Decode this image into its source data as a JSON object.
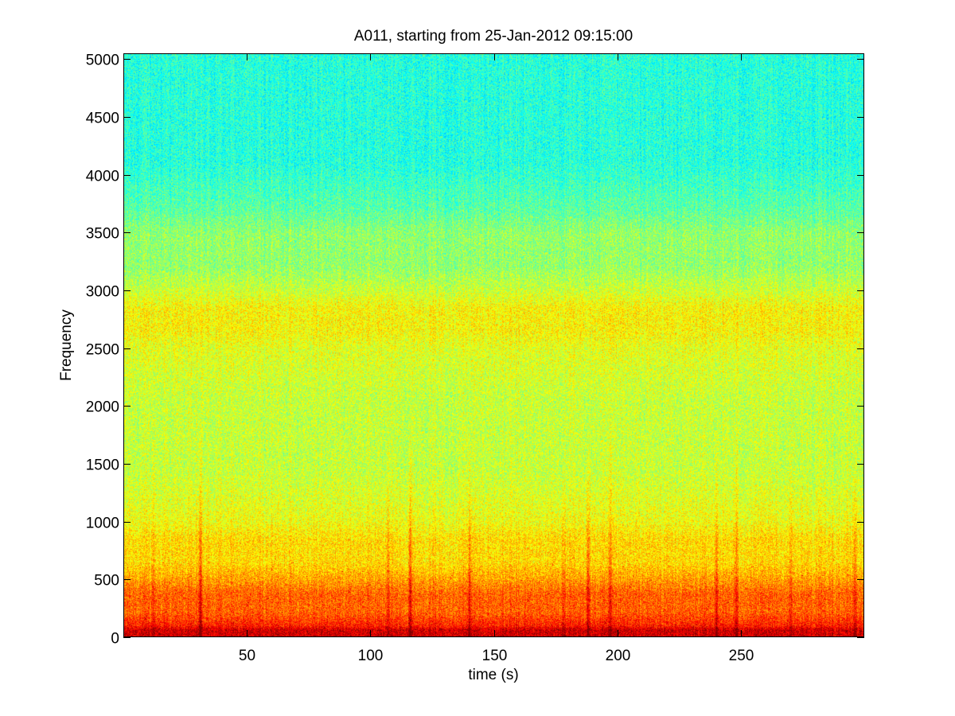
{
  "chart_data": {
    "type": "heatmap",
    "title": "A011, starting from 25-Jan-2012 09:15:00",
    "xlabel": "time (s)",
    "ylabel": "Frequency",
    "xlim": [
      0,
      300
    ],
    "ylim": [
      0,
      5050
    ],
    "x_ticks": [
      50,
      100,
      150,
      200,
      250
    ],
    "y_ticks": [
      0,
      500,
      1000,
      1500,
      2000,
      2500,
      3000,
      3500,
      4000,
      4500,
      5000
    ],
    "grid": false,
    "colormap": "jet",
    "bands": [
      {
        "from_hz": 0,
        "to_hz": 100,
        "level": 0.92
      },
      {
        "from_hz": 100,
        "to_hz": 500,
        "level": 0.78
      },
      {
        "from_hz": 500,
        "to_hz": 1000,
        "level": 0.66
      },
      {
        "from_hz": 1000,
        "to_hz": 2500,
        "level": 0.57
      },
      {
        "from_hz": 2500,
        "to_hz": 3000,
        "level": 0.63
      },
      {
        "from_hz": 3000,
        "to_hz": 3700,
        "level": 0.52
      },
      {
        "from_hz": 3700,
        "to_hz": 5050,
        "level": 0.41
      }
    ],
    "broadband_events_s": [
      12,
      31,
      107,
      116,
      140,
      178,
      188,
      197,
      240,
      248,
      270,
      296
    ]
  }
}
